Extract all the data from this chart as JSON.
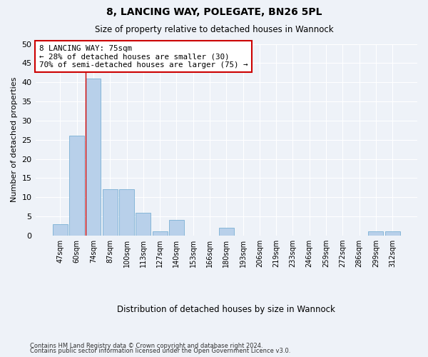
{
  "title1": "8, LANCING WAY, POLEGATE, BN26 5PL",
  "title2": "Size of property relative to detached houses in Wannock",
  "xlabel": "Distribution of detached houses by size in Wannock",
  "ylabel": "Number of detached properties",
  "bar_labels": [
    "47sqm",
    "60sqm",
    "74sqm",
    "87sqm",
    "100sqm",
    "113sqm",
    "127sqm",
    "140sqm",
    "153sqm",
    "166sqm",
    "180sqm",
    "193sqm",
    "206sqm",
    "219sqm",
    "233sqm",
    "246sqm",
    "259sqm",
    "272sqm",
    "286sqm",
    "299sqm",
    "312sqm"
  ],
  "bar_values": [
    3,
    26,
    41,
    12,
    12,
    6,
    1,
    4,
    0,
    0,
    2,
    0,
    0,
    0,
    0,
    0,
    0,
    0,
    0,
    1,
    1
  ],
  "bar_color": "#b8d0ea",
  "bar_edge_color": "#7aafd4",
  "vline_x_bar_index": 2,
  "annotation_line1": "8 LANCING WAY: 75sqm",
  "annotation_line2": "← 28% of detached houses are smaller (30)",
  "annotation_line3": "70% of semi-detached houses are larger (75) →",
  "annotation_box_color": "#ffffff",
  "annotation_border_color": "#cc0000",
  "vline_color": "#cc0000",
  "ylim": [
    0,
    50
  ],
  "yticks": [
    0,
    5,
    10,
    15,
    20,
    25,
    30,
    35,
    40,
    45,
    50
  ],
  "footer1": "Contains HM Land Registry data © Crown copyright and database right 2024.",
  "footer2": "Contains public sector information licensed under the Open Government Licence v3.0.",
  "background_color": "#eef2f8",
  "grid_color": "#ffffff"
}
